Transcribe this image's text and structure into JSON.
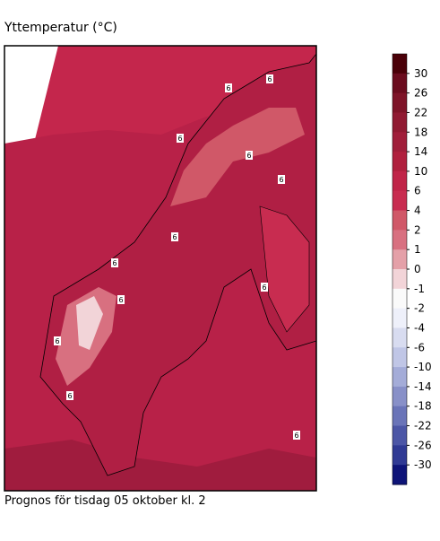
{
  "header": {
    "title": "Yttemperatur (°C)"
  },
  "footer": {
    "text": "Prognos för tisdag 05 oktober kl. 2"
  },
  "colorbar": {
    "labels": [
      30,
      26,
      22,
      18,
      14,
      10,
      6,
      4,
      2,
      1,
      0,
      -1,
      -2,
      -4,
      -6,
      -10,
      -14,
      -18,
      -22,
      -26,
      -30
    ],
    "colors": [
      "#4a0008",
      "#6b0c1e",
      "#7e1428",
      "#901a32",
      "#a01e3a",
      "#b0203e",
      "#c02448",
      "#c82c50",
      "#d05868",
      "#d87080",
      "#e4a0a8",
      "#f2d4d8",
      "#fafafa",
      "#eef0fa",
      "#d8dcf0",
      "#c0c6e6",
      "#a4acd8",
      "#8890c8",
      "#6a74b8",
      "#4c56a6",
      "#303a94",
      "#0e1478"
    ]
  },
  "map": {
    "contour_labels": [
      "6",
      "6",
      "6",
      "6",
      "6",
      "6",
      "6",
      "6",
      "6",
      "6",
      "6",
      "6"
    ]
  }
}
